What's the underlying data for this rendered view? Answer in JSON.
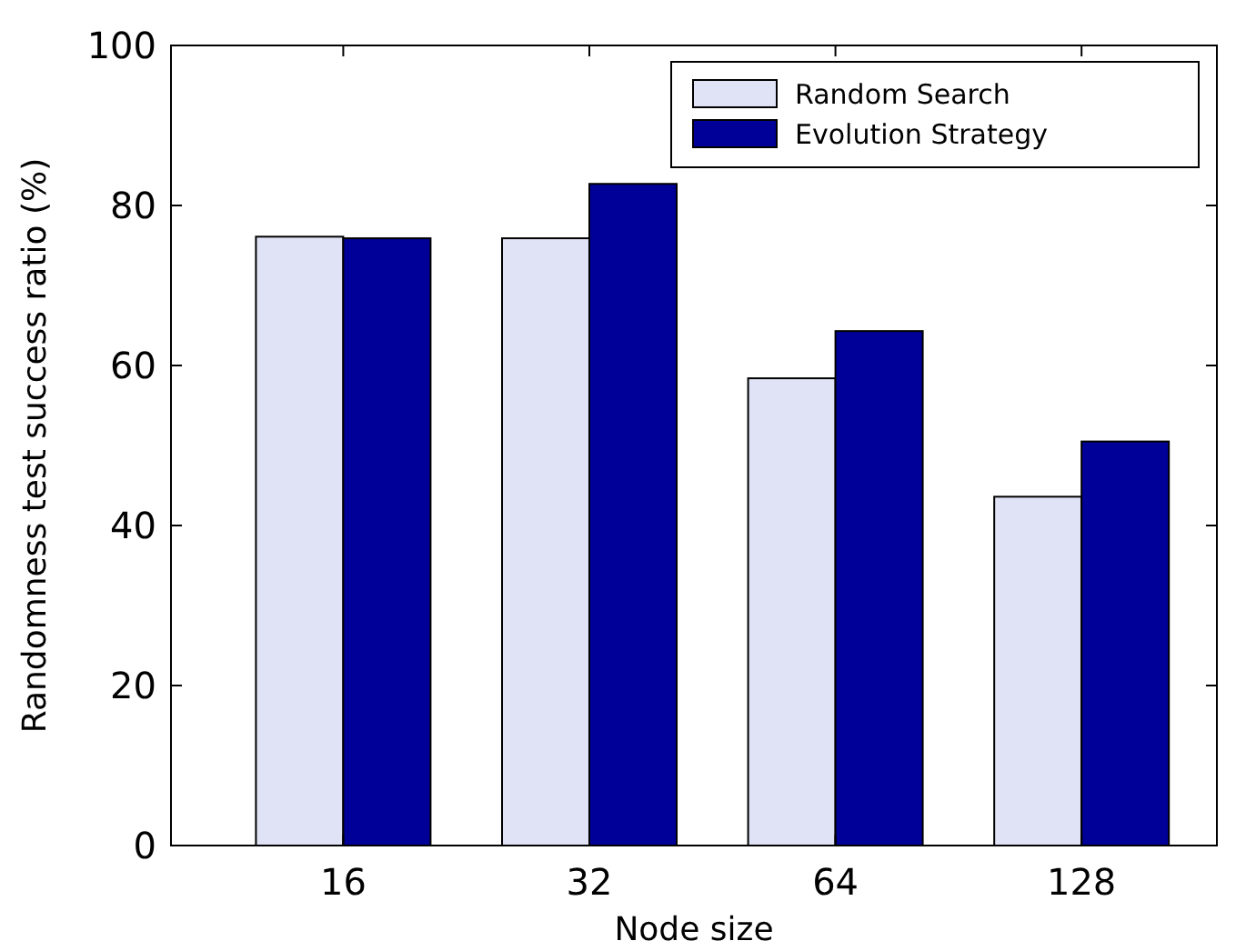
{
  "chart_data": {
    "type": "bar",
    "xlabel": "Node size",
    "ylabel": "Randomness test success ratio (%)",
    "categories": [
      "16",
      "32",
      "64",
      "128"
    ],
    "series": [
      {
        "name": "Random Search",
        "color": "#e0e3f5",
        "values": [
          76.1,
          75.9,
          58.4,
          43.6
        ]
      },
      {
        "name": "Evolution Strategy",
        "color": "#000099",
        "values": [
          75.9,
          82.7,
          64.3,
          50.5
        ]
      }
    ],
    "ylim": [
      0,
      100
    ],
    "yticks": [
      0,
      20,
      40,
      60,
      80,
      100
    ],
    "grid": false,
    "legend": "top right"
  }
}
